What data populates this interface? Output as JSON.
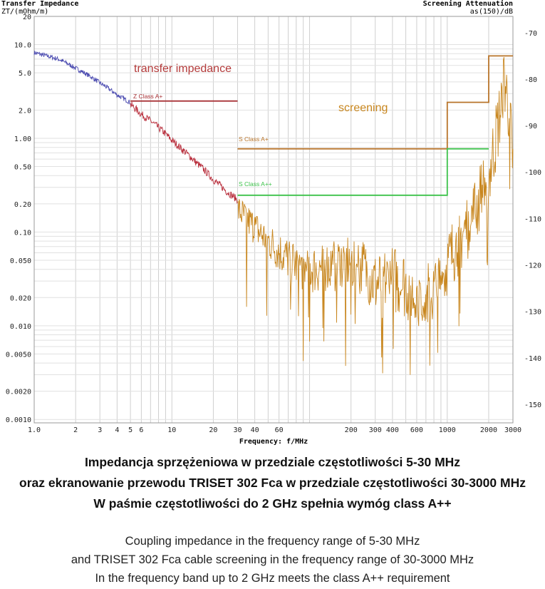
{
  "chart_data": {
    "type": "line",
    "title": "",
    "xlabel": "Frequency: f/MHz",
    "x_scale": "log",
    "xlim": [
      1,
      3000
    ],
    "x_ticks": [
      1,
      2,
      3,
      4,
      5,
      6,
      10,
      20,
      30,
      40,
      60,
      200,
      300,
      400,
      600,
      1000,
      2000,
      3000
    ],
    "x_tick_labels": [
      "1.0",
      "2",
      "3",
      "4",
      "5",
      "6",
      "10",
      "20",
      "30",
      "40",
      "60",
      "200",
      "300",
      "400",
      "600",
      "1000",
      "2000",
      "3000"
    ],
    "left_axis": {
      "title": "Transfer Impedance",
      "unit": "ZT/(mOhm/m)",
      "scale": "log",
      "ylim": [
        0.00092,
        20
      ],
      "ticks": [
        20,
        10,
        5,
        2,
        1,
        0.5,
        0.2,
        0.1,
        0.05,
        0.02,
        0.01,
        0.005,
        0.002,
        0.001
      ],
      "tick_labels": [
        "20",
        "10.0",
        "5.0",
        "2.0",
        "1.00",
        "0.50",
        "0.20",
        "0.10",
        "0.050",
        "0.020",
        "0.010",
        "0.0050",
        "0.0020",
        "0.0010"
      ]
    },
    "right_axis": {
      "title": "Screening Attenuation",
      "unit": "as(150)/dB",
      "ylim": [
        -66.5,
        -154
      ],
      "ticks": [
        -70,
        -80,
        -90,
        -100,
        -110,
        -120,
        -130,
        -140,
        -150
      ],
      "tick_labels": [
        "-70",
        "-80",
        "-90",
        "-100",
        "-110",
        "-120",
        "-130",
        "-140",
        "-150"
      ]
    },
    "grid": true,
    "series": [
      {
        "name": "",
        "axis": "left",
        "color": "#4a4ab0",
        "x": [
          1,
          1.5,
          2,
          3,
          4,
          5
        ],
        "y": [
          8.2,
          7.0,
          5.6,
          3.9,
          2.9,
          2.4
        ]
      },
      {
        "name": "",
        "axis": "left",
        "color": "#b82c3a",
        "x": [
          5,
          6,
          8,
          10,
          12,
          15,
          20,
          25,
          30
        ],
        "y": [
          2.3,
          1.8,
          1.3,
          0.95,
          0.75,
          0.55,
          0.36,
          0.27,
          0.22
        ]
      },
      {
        "name": "",
        "axis": "right",
        "color": "#c8861e",
        "x": [
          30,
          40,
          60,
          80,
          100,
          150,
          200,
          250,
          300,
          400,
          500,
          600,
          800,
          1000,
          1200,
          1500,
          2000,
          2400,
          2600,
          2800,
          3000
        ],
        "y": [
          -108,
          -112,
          -117,
          -120,
          -121,
          -120,
          -119,
          -121,
          -124,
          -123,
          -124,
          -127,
          -126,
          -120,
          -115,
          -110,
          -101,
          -88,
          -80,
          -86,
          -98
        ]
      }
    ],
    "limits": [
      {
        "name": "Z Class A+",
        "axis": "left",
        "color": "#a83236",
        "x": [
          5,
          30
        ],
        "y": [
          2.5,
          2.5
        ]
      },
      {
        "name": "S Class A+",
        "axis": "right",
        "color": "#b8742a",
        "x": [
          30,
          1000,
          1000,
          2000,
          2000,
          3000
        ],
        "y": [
          -95,
          -95,
          -85,
          -85,
          -75,
          -75
        ]
      },
      {
        "name": "S Class A++",
        "axis": "right",
        "color": "#3cc24a",
        "x": [
          30,
          1000,
          1000,
          2000
        ],
        "y": [
          -105,
          -105,
          -95,
          -95
        ]
      }
    ],
    "annotations": [
      {
        "text": "transfer impedance",
        "color": "#b33a3a"
      },
      {
        "text": "screening",
        "color": "#c8861e"
      }
    ]
  },
  "caption_pl": [
    "Impedancja sprzężeniowa w przedziale częstotliwości 5-30 MHz",
    "oraz ekranowanie przewodu TRISET 302 Fca w przedziale częstotliwości 30-3000 MHz",
    "W paśmie częstotliwości do 2 GHz spełnia wymóg class A++"
  ],
  "caption_en": [
    "Coupling impedance in the frequency range of 5-30 MHz",
    "and TRISET 302 Fca cable screening in the frequency range of 30-3000 MHz",
    "In the frequency band up to 2 GHz meets the class A++ requirement"
  ]
}
